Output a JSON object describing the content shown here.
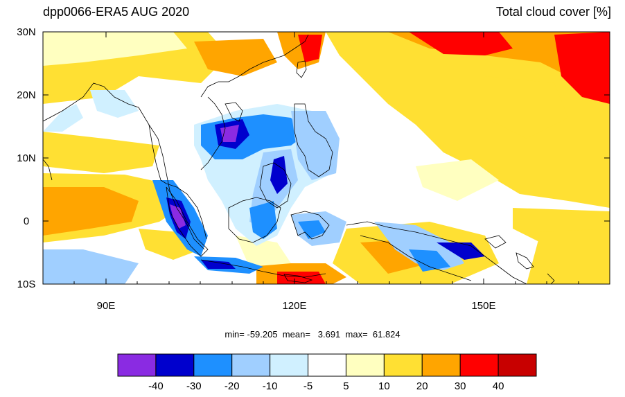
{
  "header": {
    "title_left": "dpp0066-ERA5 AUG 2020",
    "title_right": "Total cloud cover [%]"
  },
  "map": {
    "lat_labels": [
      "30N",
      "20N",
      "10N",
      "0",
      "10S"
    ],
    "lon_labels": [
      "90E",
      "120E",
      "150E"
    ]
  },
  "stats": {
    "text": "min= -59.205  mean=   3.691  max=  61.824"
  },
  "colorbar": {
    "colors": [
      "#8a2be2",
      "#0000cd",
      "#1e90ff",
      "#a0cfff",
      "#d0f0ff",
      "#ffffff",
      "#ffffc0",
      "#ffe033",
      "#ffa500",
      "#ff0000",
      "#c80000"
    ],
    "labels": [
      "-40",
      "-30",
      "-20",
      "-10",
      "-5",
      "5",
      "10",
      "20",
      "30",
      "40"
    ]
  }
}
